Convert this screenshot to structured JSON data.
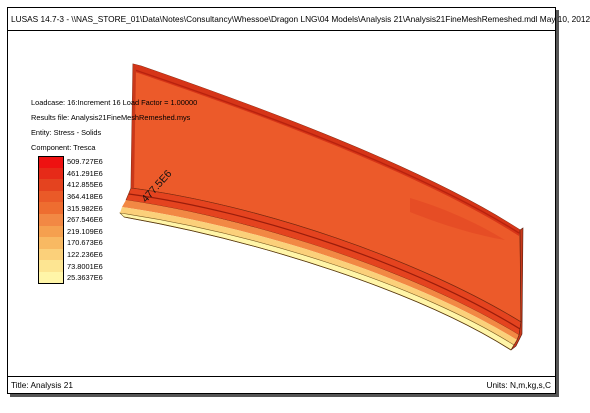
{
  "window": {
    "title": "LUSAS 14.7-3 - \\\\NAS_STORE_01\\Data\\Notes\\Consultancy\\Whessoe\\Dragon LNG\\04 Models\\Analysis 21\\Analysis21FineMeshRemeshed.mdl May 10, 2012"
  },
  "info": {
    "loadcase": "Loadcase: 16:Increment 16 Load Factor = 1.00000",
    "results_file": "Results file: Analysis21FineMeshRemeshed.mys",
    "entity": "Entity: Stress - Solids",
    "component": "Component: Tresca"
  },
  "legend": {
    "items": [
      {
        "label": "509.727E6",
        "color": "#ee1111"
      },
      {
        "label": "461.291E6",
        "color": "#e62a18"
      },
      {
        "label": "412.855E6",
        "color": "#e4431f"
      },
      {
        "label": "364.418E6",
        "color": "#ea5a28"
      },
      {
        "label": "315.982E6",
        "color": "#ee6d30"
      },
      {
        "label": "267.546E6",
        "color": "#f28844"
      },
      {
        "label": "219.109E6",
        "color": "#f5a04f"
      },
      {
        "label": "170.673E6",
        "color": "#f8b962"
      },
      {
        "label": "122.236E6",
        "color": "#fbd07a"
      },
      {
        "label": "73.8001E6",
        "color": "#fde592"
      },
      {
        "label": "25.3637E6",
        "color": "#fff5a8"
      }
    ]
  },
  "annotation": {
    "max_value": "477.5E6"
  },
  "footer": {
    "title": "Title: Analysis 21",
    "units": "Units: N,m,kg,s,C"
  }
}
